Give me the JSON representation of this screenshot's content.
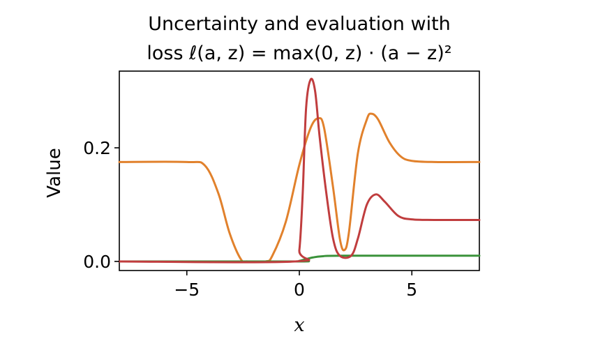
{
  "chart_data": {
    "type": "line",
    "title_lines": [
      "Uncertainty and evaluation with",
      "loss ℓ(a, z) = max(0, z) · (a − z)²"
    ],
    "xlabel": "x",
    "ylabel": "Value",
    "xlim": [
      -8,
      8
    ],
    "ylim": [
      -0.016,
      0.335
    ],
    "xticks": [
      -5,
      0,
      5
    ],
    "xtick_labels": [
      "−5",
      "0",
      "5"
    ],
    "yticks": [
      0.0,
      0.2
    ],
    "ytick_labels": [
      "0.0",
      "0.2"
    ],
    "grid": false,
    "series": [
      {
        "color": "#e1812c",
        "points": [
          [
            -8,
            0.175
          ],
          [
            -5,
            0.175
          ],
          [
            -4.2,
            0.169
          ],
          [
            -3.6,
            0.12
          ],
          [
            -3.1,
            0.05
          ],
          [
            -2.6,
            0.004
          ],
          [
            -2.3,
            0.0
          ],
          [
            -1.5,
            0.0
          ],
          [
            -1.2,
            0.01
          ],
          [
            -0.6,
            0.07
          ],
          [
            0.0,
            0.17
          ],
          [
            0.5,
            0.235
          ],
          [
            0.85,
            0.252
          ],
          [
            1.1,
            0.235
          ],
          [
            1.5,
            0.13
          ],
          [
            1.8,
            0.04
          ],
          [
            2.0,
            0.02
          ],
          [
            2.2,
            0.05
          ],
          [
            2.6,
            0.19
          ],
          [
            3.0,
            0.25
          ],
          [
            3.2,
            0.26
          ],
          [
            3.5,
            0.25
          ],
          [
            4.0,
            0.21
          ],
          [
            4.5,
            0.185
          ],
          [
            5.0,
            0.177
          ],
          [
            6.0,
            0.175
          ],
          [
            8,
            0.175
          ]
        ]
      },
      {
        "color": "#3a923a",
        "points": [
          [
            -8,
            0.0
          ],
          [
            -0.2,
            0.0
          ],
          [
            0.0,
            0.001
          ],
          [
            0.3,
            0.004
          ],
          [
            0.6,
            0.007
          ],
          [
            1.0,
            0.009
          ],
          [
            2.0,
            0.01
          ],
          [
            8,
            0.01
          ]
        ]
      },
      {
        "color": "#c03d3e",
        "points": [
          [
            -8,
            0.0
          ],
          [
            -0.2,
            0.0
          ],
          [
            0.0,
            0.02
          ],
          [
            0.15,
            0.12
          ],
          [
            0.3,
            0.27
          ],
          [
            0.5,
            0.32
          ],
          [
            0.7,
            0.3
          ],
          [
            0.9,
            0.22
          ],
          [
            1.2,
            0.12
          ],
          [
            1.5,
            0.04
          ],
          [
            1.8,
            0.01
          ],
          [
            2.3,
            0.01
          ],
          [
            2.6,
            0.04
          ],
          [
            3.0,
            0.1
          ],
          [
            3.4,
            0.118
          ],
          [
            3.8,
            0.105
          ],
          [
            4.4,
            0.08
          ],
          [
            5.0,
            0.074
          ],
          [
            6.0,
            0.073
          ],
          [
            8,
            0.073
          ]
        ]
      }
    ]
  }
}
